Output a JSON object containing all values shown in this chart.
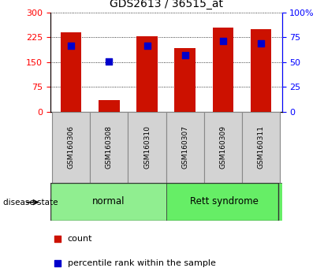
{
  "title": "GDS2613 / 36515_at",
  "samples": [
    "GSM160306",
    "GSM160308",
    "GSM160310",
    "GSM160307",
    "GSM160309",
    "GSM160311"
  ],
  "bar_heights": [
    240,
    35,
    228,
    193,
    254,
    250
  ],
  "bar_color": "#cc1100",
  "percentile_values": [
    200,
    152,
    200,
    170,
    213,
    207
  ],
  "percentile_color": "#0000cc",
  "ylim_left": [
    0,
    300
  ],
  "ylim_right": [
    0,
    100
  ],
  "yticks_left": [
    0,
    75,
    150,
    225,
    300
  ],
  "ytick_labels_left": [
    "0",
    "75",
    "150",
    "225",
    "300"
  ],
  "yticks_right": [
    0,
    25,
    50,
    75,
    100
  ],
  "ytick_labels_right": [
    "0",
    "25",
    "50",
    "75",
    "100%"
  ],
  "groups": [
    {
      "label": "normal",
      "color": "#90ee90"
    },
    {
      "label": "Rett syndrome",
      "color": "#66ee66"
    }
  ],
  "group_label": "disease state",
  "bar_width": 0.55,
  "background_color": "#ffffff",
  "legend_count_label": "count",
  "legend_percentile_label": "percentile rank within the sample"
}
